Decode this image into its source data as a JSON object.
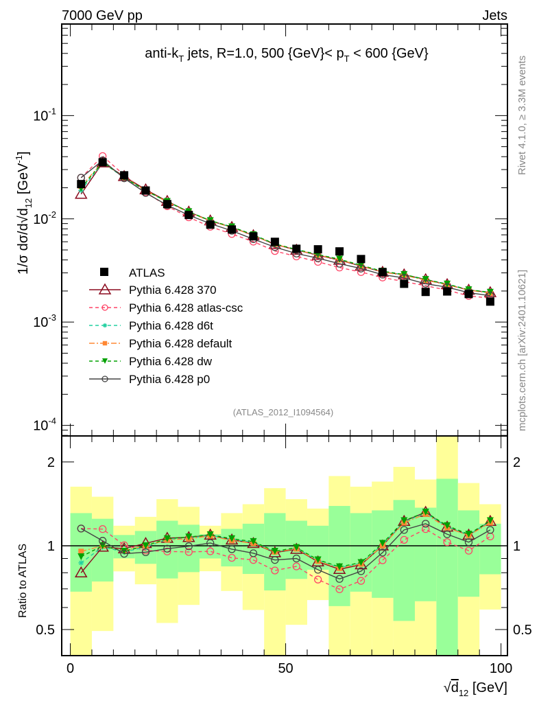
{
  "header": {
    "left": "7000 GeV pp",
    "right": "Jets"
  },
  "side": {
    "rivet": "Rivet 4.1.0, ≥ 3.3M events",
    "mcplots": "mcplots.cern.ch [arXiv:2401.10621]"
  },
  "watermark": "(ATLAS_2012_I1094564)",
  "chart_data": {
    "type": "line",
    "title": "anti-kT jets, R=1.0, 500 {GeV}< pT < 600 {GeV}",
    "title_parts": {
      "a": "anti-k",
      "a_sub": "T",
      "b": " jets, R=1.0, 500 {GeV}< p",
      "b_sub": "T",
      "c": " < 600 {GeV}"
    },
    "xlabel": "√d12 [GeV]",
    "xlabel_parts": {
      "root": "√",
      "var": "d",
      "sub": "12",
      "unit": " [GeV]"
    },
    "ylabel": "1/σ dσ/d√d12 [GeV^-1]",
    "ylabel_parts": {
      "a": "1/σ dσ/d√",
      "var": "d",
      "sub": "12",
      "unit": " [GeV",
      "sup": "-1",
      "close": "]"
    },
    "ratio_ylabel": "Ratio to ATLAS",
    "xlim": [
      -2,
      101.5
    ],
    "ylim": [
      7.9e-05,
      0.77
    ],
    "yscale": "log",
    "ratio_ylim": [
      0.403,
      2.48
    ],
    "ratio_yscale": "log",
    "x_ticks": [
      0,
      50,
      100
    ],
    "y_ticks": [
      {
        "value": 0.1,
        "exp": "-1"
      },
      {
        "value": 0.01,
        "exp": "-2"
      },
      {
        "value": 0.001,
        "exp": "-3"
      },
      {
        "value": 0.0001,
        "exp": "-4"
      }
    ],
    "ratio_ticks": [
      {
        "value": 0.5,
        "label": "0.5"
      },
      {
        "value": 1,
        "label": "1"
      },
      {
        "value": 2,
        "label": "2"
      }
    ],
    "legend_position": "lower-left",
    "x": [
      2.5,
      7.5,
      12.5,
      17.5,
      22.5,
      27.5,
      32.5,
      37.5,
      42.5,
      47.5,
      52.5,
      57.5,
      62.5,
      67.5,
      72.5,
      77.5,
      82.5,
      87.5,
      92.5,
      97.5
    ],
    "bin_width": 5,
    "atlas": {
      "name": "ATLAS",
      "color": "#000000",
      "values": [
        0.0217,
        0.0353,
        0.0264,
        0.0188,
        0.0139,
        0.0109,
        0.00878,
        0.00789,
        0.00677,
        0.00599,
        0.00513,
        0.00507,
        0.00484,
        0.00408,
        0.00305,
        0.00235,
        0.00196,
        0.00198,
        0.00187,
        0.00158
      ]
    },
    "ratio_band_stat": {
      "color": "#99ff99",
      "lo": [
        0.684,
        0.744,
        0.901,
        0.861,
        0.763,
        0.804,
        0.9,
        0.843,
        0.792,
        0.691,
        0.76,
        0.82,
        0.607,
        0.684,
        0.65,
        0.537,
        0.632,
        0.3,
        0.656,
        0.79
      ],
      "hi": [
        1.31,
        1.25,
        1.093,
        1.13,
        1.23,
        1.19,
        1.1,
        1.15,
        1.2,
        1.31,
        1.23,
        1.18,
        1.39,
        1.31,
        1.34,
        1.46,
        1.37,
        1.74,
        1.34,
        1.2
      ]
    },
    "ratio_band_total": {
      "color": "#ffff99",
      "lo": [
        0.3,
        0.494,
        0.809,
        0.727,
        0.528,
        0.613,
        0.81,
        0.688,
        0.588,
        0.3,
        0.52,
        0.638,
        0.3,
        0.3,
        0.3,
        0.3,
        0.3,
        0.3,
        0.3,
        0.59
      ],
      "hi": [
        1.63,
        1.5,
        1.18,
        1.27,
        1.47,
        1.38,
        1.18,
        1.31,
        1.41,
        1.61,
        1.47,
        1.36,
        1.78,
        1.63,
        1.7,
        1.92,
        1.73,
        3.0,
        1.68,
        1.41
      ]
    },
    "series": [
      {
        "name": "Pythia 6.428 370",
        "color": "#8b0a1e",
        "dash": "",
        "marker": "triangle-open",
        "ratio": [
          0.8,
          0.99,
          0.976,
          1.02,
          1.065,
          1.072,
          1.093,
          1.05,
          1.02,
          0.945,
          0.972,
          0.876,
          0.823,
          0.855,
          1.0,
          1.225,
          1.32,
          1.168,
          1.093,
          1.225
        ]
      },
      {
        "name": "Pythia 6.428 atlas-csc",
        "color": "#ff4466",
        "dash": "5,4",
        "marker": "circle-open",
        "ratio": [
          1.153,
          1.148,
          1.004,
          0.962,
          0.954,
          0.95,
          0.955,
          0.905,
          0.889,
          0.815,
          0.843,
          0.756,
          0.698,
          0.748,
          0.887,
          1.05,
          1.148,
          1.03,
          0.96,
          1.08
        ]
      },
      {
        "name": "Pythia 6.428 d6t",
        "color": "#22d0a0",
        "dash": "5,4",
        "marker": "asterisk",
        "ratio": [
          0.868,
          0.99,
          0.95,
          0.99,
          1.055,
          1.065,
          1.09,
          1.055,
          1.03,
          0.95,
          0.98,
          0.885,
          0.835,
          0.865,
          1.01,
          1.22,
          1.31,
          1.17,
          1.095,
          1.22
        ]
      },
      {
        "name": "Pythia 6.428 default",
        "color": "#ff8833",
        "dash": "8,3,2,3",
        "marker": "square",
        "ratio": [
          0.954,
          1.0,
          0.96,
          1.0,
          1.05,
          1.06,
          1.085,
          1.045,
          1.02,
          0.95,
          0.975,
          0.88,
          0.83,
          0.86,
          1.0,
          1.21,
          1.3,
          1.16,
          1.09,
          1.21
        ]
      },
      {
        "name": "Pythia 6.428 dw",
        "color": "#00a000",
        "dash": "5,4",
        "marker": "triangle-down",
        "ratio": [
          0.913,
          1.0,
          0.955,
          1.0,
          1.06,
          1.075,
          1.095,
          1.06,
          1.035,
          0.955,
          0.985,
          0.89,
          0.84,
          0.87,
          1.02,
          1.23,
          1.32,
          1.18,
          1.1,
          1.23
        ]
      },
      {
        "name": "Pythia 6.428 p0",
        "color": "#444444",
        "dash": "",
        "marker": "circle-open",
        "ratio": [
          1.153,
          1.042,
          0.936,
          0.948,
          0.976,
          0.996,
          1.023,
          0.972,
          0.94,
          0.889,
          0.9,
          0.82,
          0.76,
          0.81,
          0.945,
          1.14,
          1.2,
          1.1,
          1.03,
          1.14
        ]
      }
    ]
  }
}
